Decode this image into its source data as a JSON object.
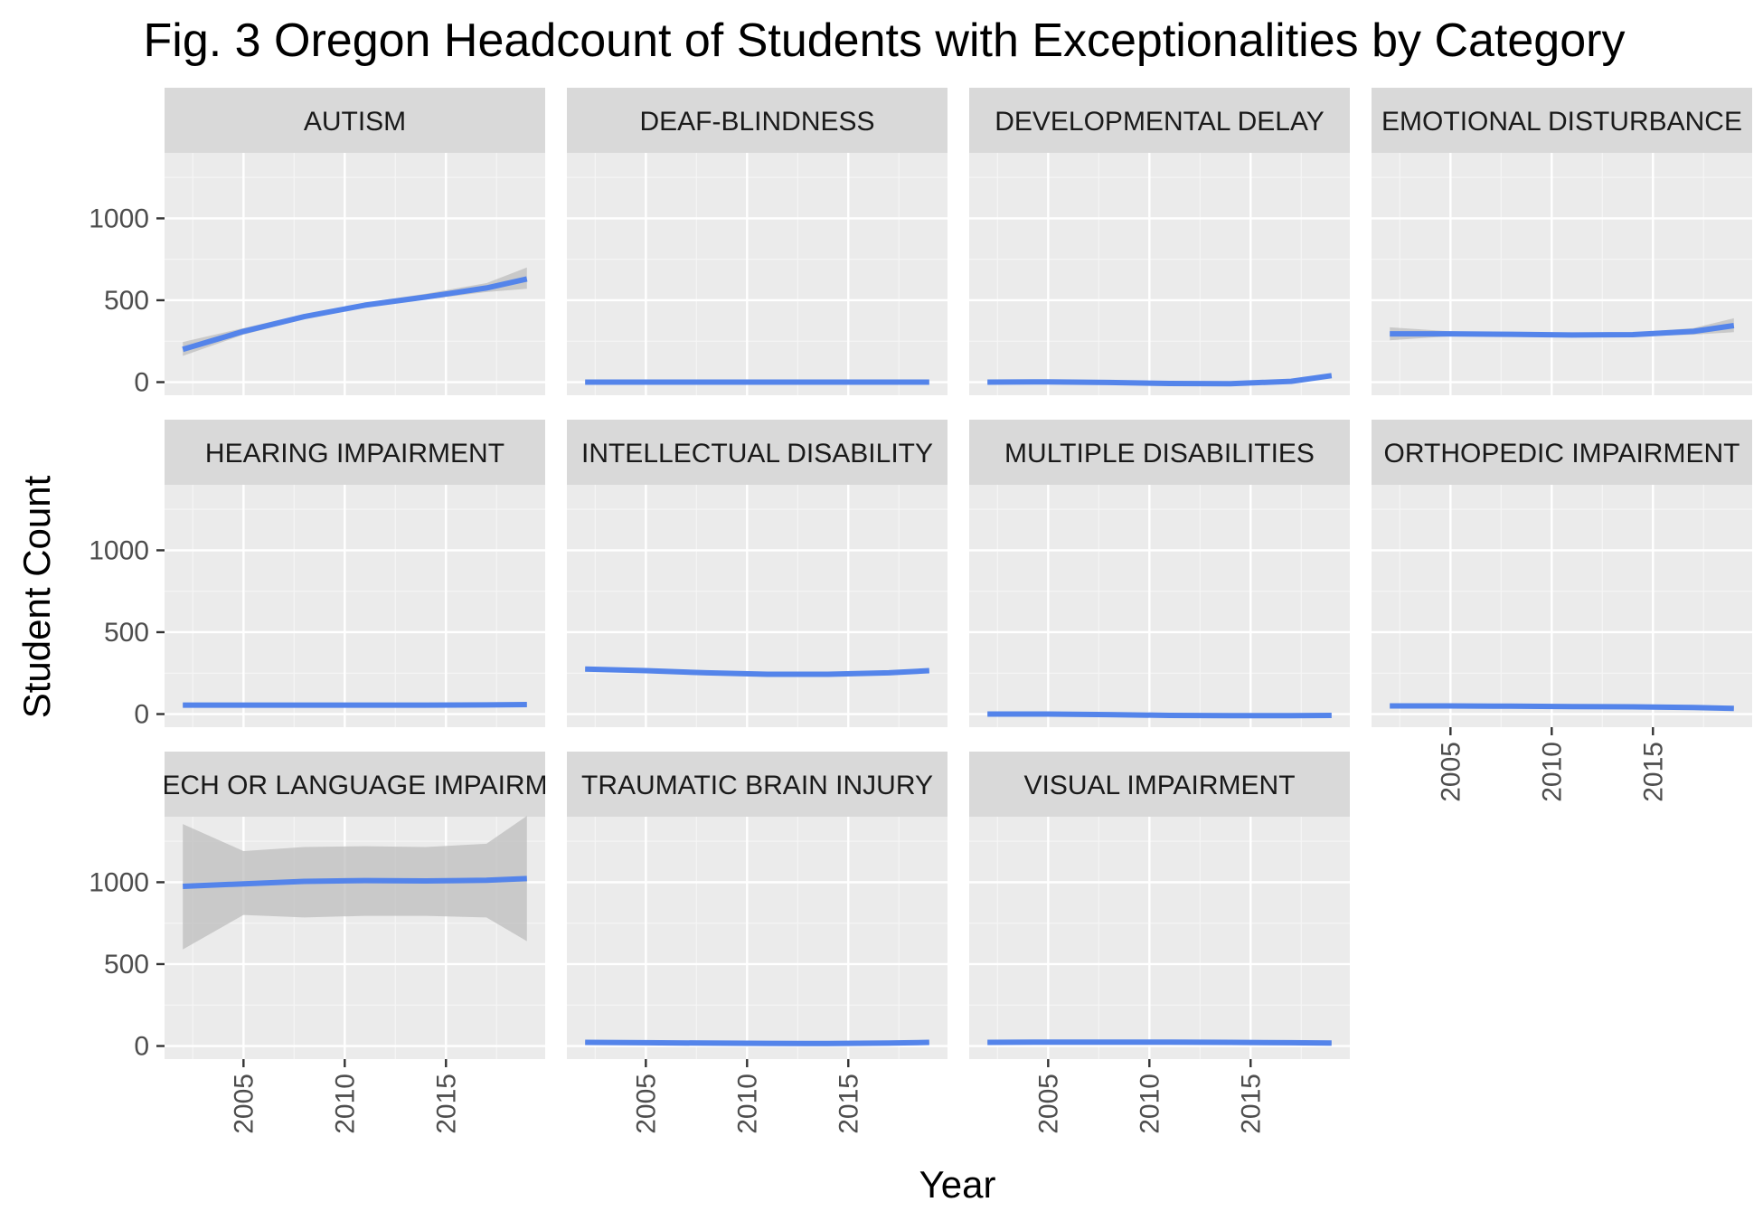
{
  "chart_data": {
    "type": "line",
    "title": "Fig. 3 Oregon Headcount of Students with Exceptionalities by Category",
    "xlabel": "Year",
    "ylabel": "Student Count",
    "xlim": [
      2001.1,
      2019.9
    ],
    "ylim": [
      -80,
      1400
    ],
    "x_ticks": [
      2005,
      2010,
      2015
    ],
    "y_ticks": [
      0,
      500,
      1000
    ],
    "layout": "facet_wrap",
    "ncol": 4,
    "grid": true,
    "smoother": "loess with confidence band",
    "colors": {
      "line": "#5484ea",
      "band": "#bdbdbd",
      "panel_bg": "#ebebeb",
      "strip_bg": "#d9d9d9",
      "grid": "#ffffff"
    },
    "series": [
      {
        "name": "AUTISM",
        "x": [
          2002,
          2005,
          2008,
          2011,
          2014,
          2017,
          2019
        ],
        "y": [
          200,
          310,
          400,
          470,
          520,
          575,
          630
        ],
        "lower": [
          160,
          290,
          385,
          455,
          505,
          550,
          570
        ],
        "upper": [
          245,
          330,
          415,
          485,
          540,
          605,
          700
        ]
      },
      {
        "name": "DEAF-BLINDNESS",
        "x": [
          2002,
          2005,
          2008,
          2011,
          2014,
          2017,
          2019
        ],
        "y": [
          0,
          0,
          0,
          0,
          0,
          0,
          0
        ],
        "lower": [
          -8,
          -8,
          -8,
          -8,
          -8,
          -8,
          -8
        ],
        "upper": [
          8,
          8,
          8,
          8,
          8,
          8,
          8
        ]
      },
      {
        "name": "DEVELOPMENTAL DELAY",
        "x": [
          2002,
          2005,
          2008,
          2011,
          2014,
          2017,
          2019
        ],
        "y": [
          0,
          2,
          -2,
          -8,
          -10,
          5,
          40
        ],
        "lower": [
          -10,
          -8,
          -10,
          -16,
          -18,
          -5,
          25
        ],
        "upper": [
          10,
          10,
          6,
          0,
          -2,
          15,
          55
        ]
      },
      {
        "name": "EMOTIONAL DISTURBANCE",
        "x": [
          2002,
          2005,
          2008,
          2011,
          2014,
          2017,
          2019
        ],
        "y": [
          295,
          295,
          292,
          288,
          290,
          310,
          345
        ],
        "lower": [
          255,
          280,
          280,
          276,
          278,
          290,
          305
        ],
        "upper": [
          335,
          310,
          304,
          300,
          302,
          330,
          390
        ]
      },
      {
        "name": "HEARING IMPAIRMENT",
        "x": [
          2002,
          2005,
          2008,
          2011,
          2014,
          2017,
          2019
        ],
        "y": [
          55,
          55,
          55,
          55,
          55,
          56,
          58
        ],
        "lower": [
          47,
          49,
          49,
          49,
          49,
          50,
          50
        ],
        "upper": [
          63,
          61,
          61,
          61,
          61,
          62,
          66
        ]
      },
      {
        "name": "INTELLECTUAL DISABILITY",
        "x": [
          2002,
          2005,
          2008,
          2011,
          2014,
          2017,
          2019
        ],
        "y": [
          275,
          265,
          252,
          243,
          243,
          252,
          265
        ],
        "lower": [
          262,
          255,
          244,
          235,
          235,
          243,
          252
        ],
        "upper": [
          288,
          275,
          260,
          251,
          251,
          261,
          278
        ]
      },
      {
        "name": "MULTIPLE DISABILITIES",
        "x": [
          2002,
          2005,
          2008,
          2011,
          2014,
          2017,
          2019
        ],
        "y": [
          0,
          0,
          -3,
          -8,
          -10,
          -10,
          -8
        ],
        "lower": [
          -8,
          -7,
          -10,
          -15,
          -17,
          -17,
          -16
        ],
        "upper": [
          8,
          7,
          4,
          -1,
          -3,
          -3,
          0
        ]
      },
      {
        "name": "ORTHOPEDIC IMPAIRMENT",
        "x": [
          2002,
          2005,
          2008,
          2011,
          2014,
          2017,
          2019
        ],
        "y": [
          50,
          50,
          48,
          46,
          44,
          40,
          35
        ],
        "lower": [
          42,
          44,
          42,
          40,
          38,
          34,
          27
        ],
        "upper": [
          58,
          56,
          54,
          52,
          50,
          46,
          43
        ]
      },
      {
        "name": "SPEECH OR LANGUAGE IMPAIRMENT",
        "x": [
          2002,
          2005,
          2008,
          2011,
          2014,
          2017,
          2019
        ],
        "y": [
          975,
          990,
          1005,
          1010,
          1008,
          1012,
          1022
        ],
        "lower": [
          590,
          800,
          785,
          795,
          795,
          785,
          640
        ],
        "upper": [
          1355,
          1190,
          1215,
          1220,
          1215,
          1235,
          1405
        ]
      },
      {
        "name": "TRAUMATIC BRAIN INJURY",
        "x": [
          2002,
          2005,
          2008,
          2011,
          2014,
          2017,
          2019
        ],
        "y": [
          22,
          20,
          18,
          16,
          15,
          18,
          22
        ],
        "lower": [
          15,
          14,
          12,
          10,
          9,
          12,
          14
        ],
        "upper": [
          29,
          26,
          24,
          22,
          21,
          24,
          30
        ]
      },
      {
        "name": "VISUAL IMPAIRMENT",
        "x": [
          2002,
          2005,
          2008,
          2011,
          2014,
          2017,
          2019
        ],
        "y": [
          22,
          24,
          24,
          23,
          22,
          20,
          18
        ],
        "lower": [
          15,
          18,
          18,
          17,
          16,
          14,
          11
        ],
        "upper": [
          29,
          30,
          30,
          29,
          28,
          26,
          25
        ]
      }
    ]
  }
}
